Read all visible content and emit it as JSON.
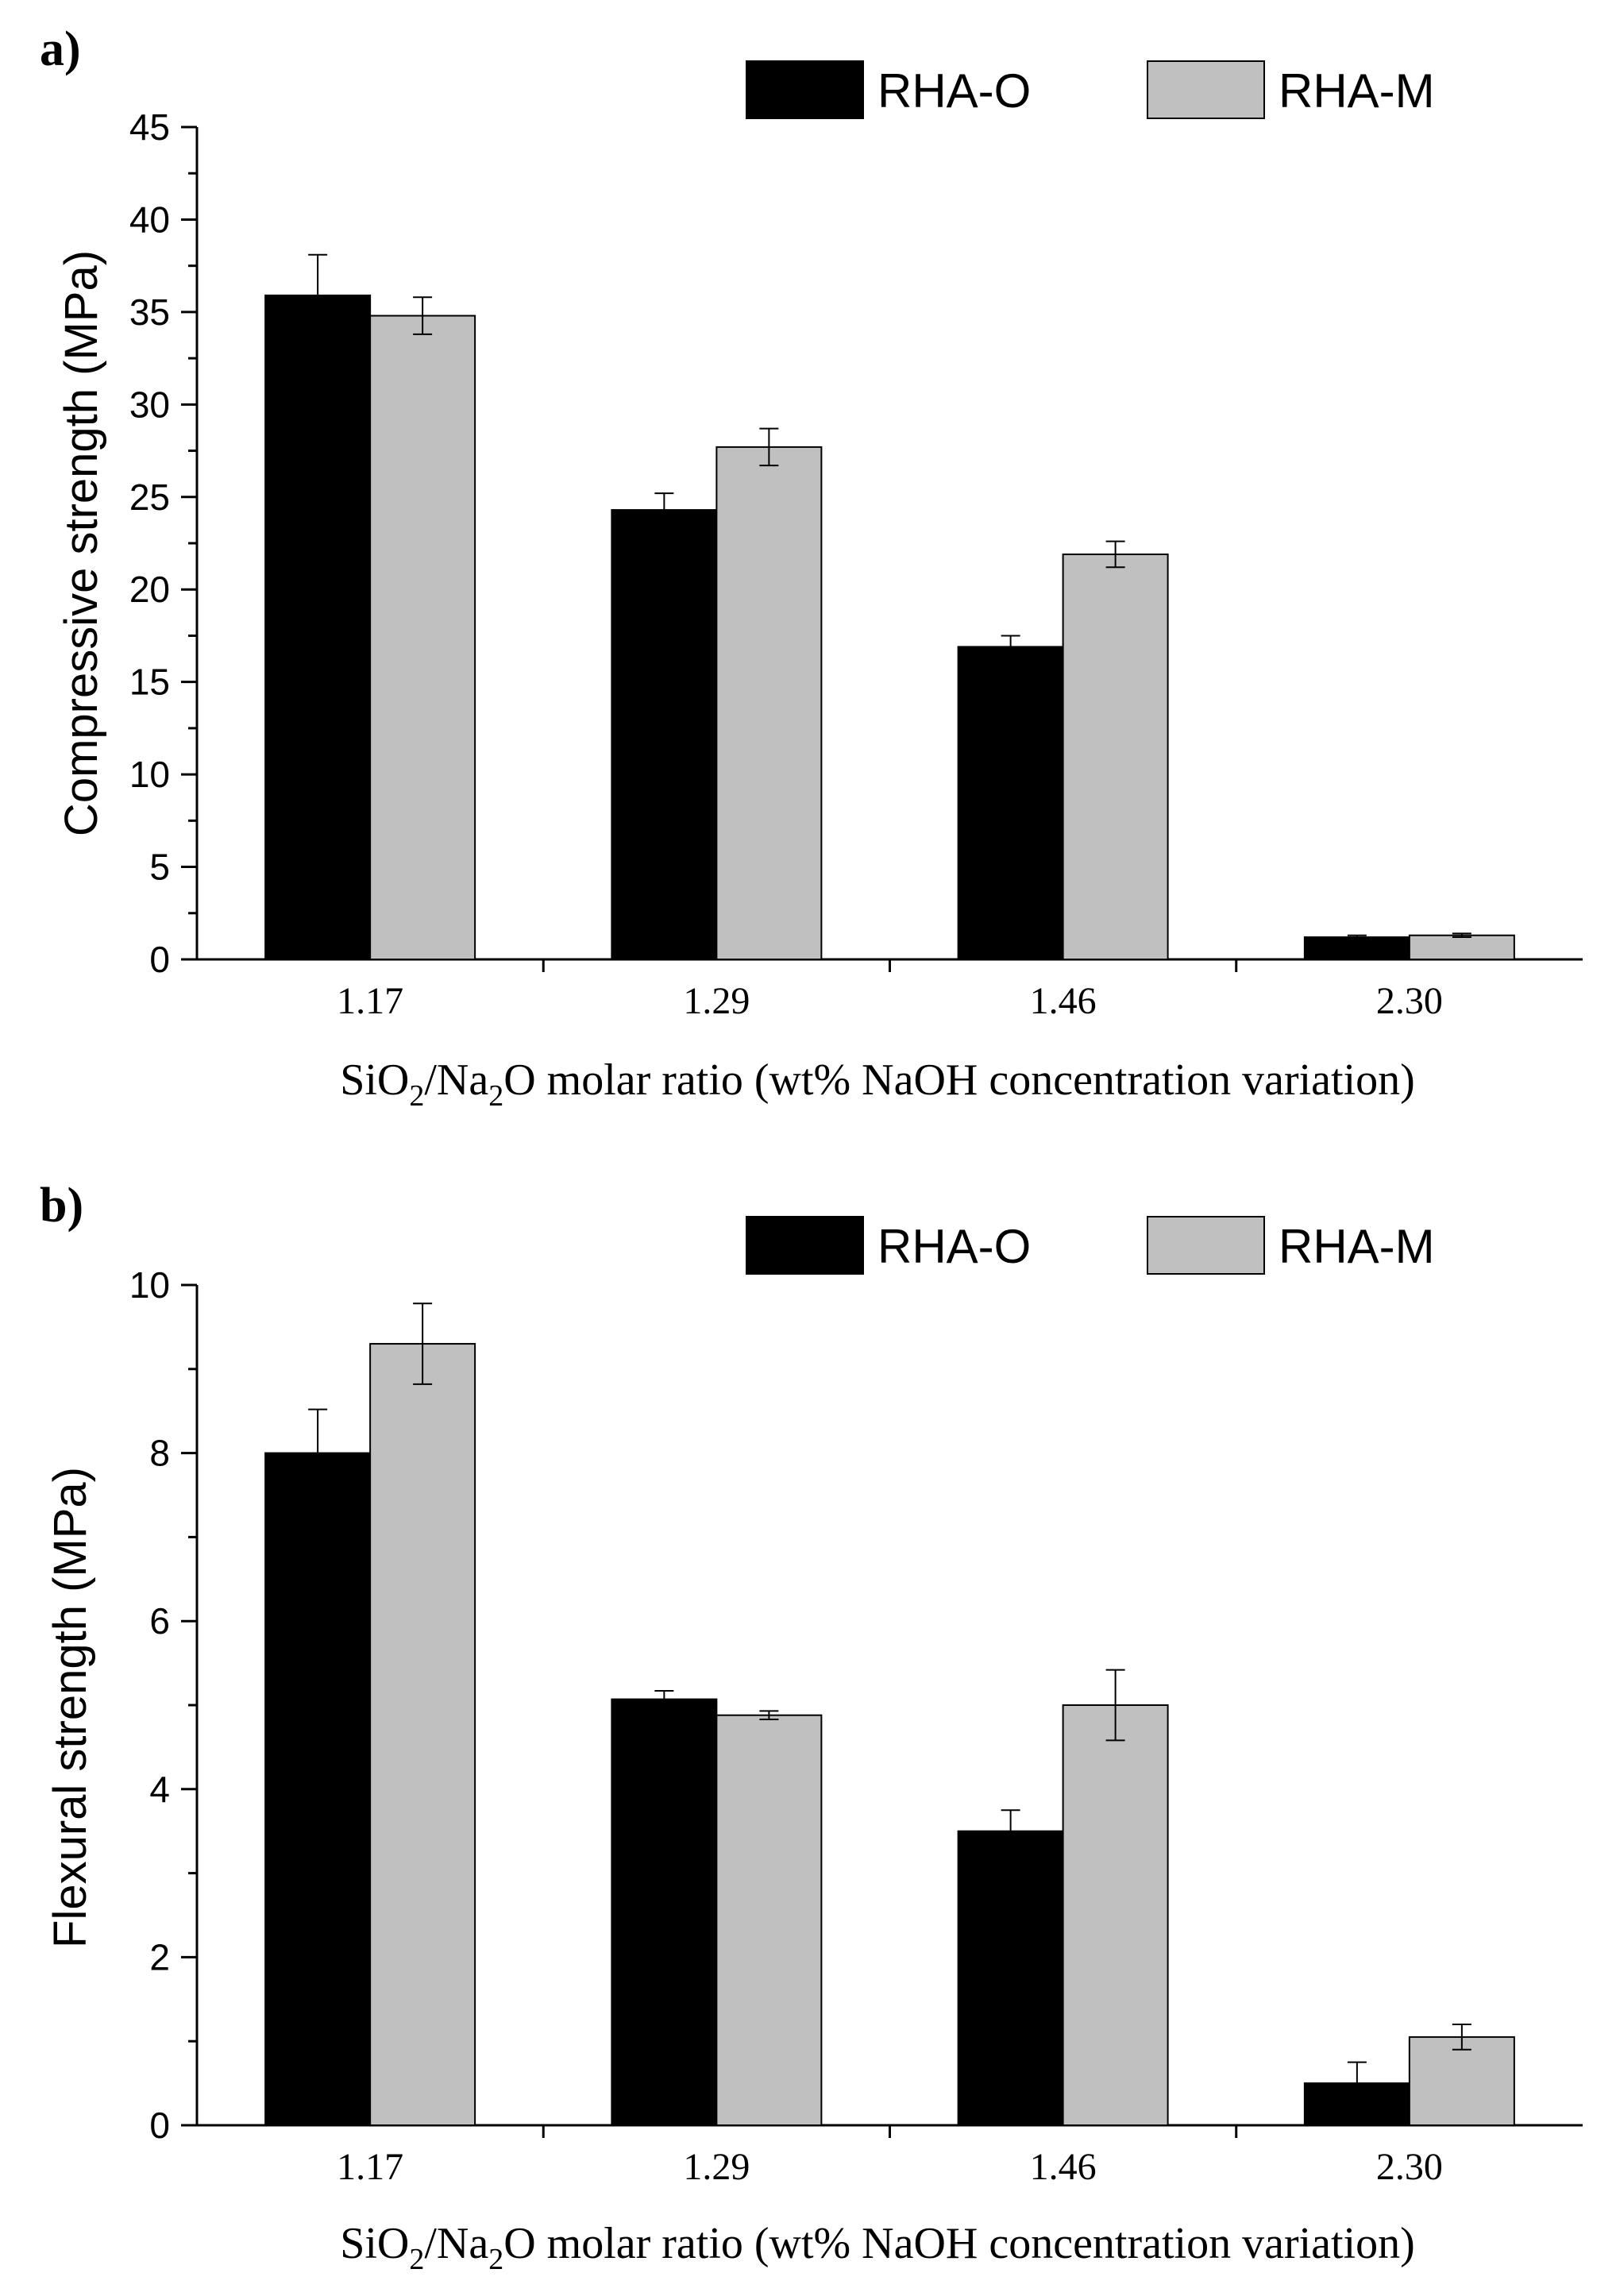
{
  "chart_data": [
    {
      "panel_label": "a)",
      "type": "bar",
      "categories": [
        "1.17",
        "1.29",
        "1.46",
        "2.30"
      ],
      "series": [
        {
          "name": "RHA-O",
          "color": "#000000",
          "values": [
            35.9,
            24.3,
            16.9,
            1.2
          ],
          "errors": [
            2.2,
            0.9,
            0.6,
            0.1
          ]
        },
        {
          "name": "RHA-M",
          "color": "#c0c0c0",
          "values": [
            34.8,
            27.7,
            21.9,
            1.3
          ],
          "errors": [
            1.0,
            1.0,
            0.7,
            0.1
          ]
        }
      ],
      "ylabel": "Compressive strength (MPa)",
      "xlabel": {
        "pre": "SiO",
        "sub1": "2",
        "mid": "/Na",
        "sub2": "2",
        "post": "O molar ratio (wt% NaOH concentration variation)"
      },
      "ylim": [
        0,
        45
      ],
      "yticks": [
        "0",
        "5",
        "10",
        "15",
        "20",
        "25",
        "30",
        "35",
        "40",
        "45"
      ],
      "legend_position": "top-right"
    },
    {
      "panel_label": "b)",
      "type": "bar",
      "categories": [
        "1.17",
        "1.29",
        "1.46",
        "2.30"
      ],
      "series": [
        {
          "name": "RHA-O",
          "color": "#000000",
          "values": [
            8.0,
            5.07,
            3.5,
            0.5
          ],
          "errors": [
            0.52,
            0.1,
            0.25,
            0.25
          ]
        },
        {
          "name": "RHA-M",
          "color": "#c0c0c0",
          "values": [
            9.3,
            4.88,
            5.0,
            1.05
          ],
          "errors": [
            0.48,
            0.05,
            0.42,
            0.15
          ]
        }
      ],
      "ylabel": "Flexural strength (MPa)",
      "xlabel": {
        "pre": "SiO",
        "sub1": "2",
        "mid": "/Na",
        "sub2": "2",
        "post": "O molar ratio (wt% NaOH concentration variation)"
      },
      "ylim": [
        0,
        10
      ],
      "yticks": [
        "0",
        "2",
        "4",
        "6",
        "8",
        "10"
      ],
      "legend_position": "top-right"
    }
  ]
}
